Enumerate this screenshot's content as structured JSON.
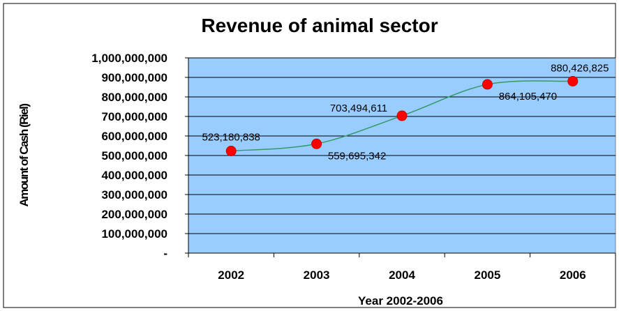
{
  "chart_data": {
    "type": "line",
    "title": "Revenue of animal sector",
    "xlabel": "Year 2002-2006",
    "ylabel": "Amount of Cash (Riel)",
    "categories": [
      "2002",
      "2003",
      "2004",
      "2005",
      "2006"
    ],
    "series": [
      {
        "values": [
          523180838,
          559695342,
          703494611,
          864105470,
          880426825
        ],
        "data_labels": [
          "523,180,838",
          "559,695,342",
          "703,494,611",
          "864,105,470",
          "880,426,825"
        ]
      }
    ],
    "y_ticks": [
      "-",
      "100,000,000",
      "200,000,000",
      "300,000,000",
      "400,000,000",
      "500,000,000",
      "600,000,000",
      "700,000,000",
      "800,000,000",
      "900,000,000",
      "1,000,000,000"
    ],
    "ylim": [
      0,
      1000000000
    ],
    "grid": true,
    "legend": "none",
    "colors": {
      "plot_background": "#99ccff",
      "line": "#339966",
      "marker": "#ff0000",
      "grid": "#000000"
    }
  }
}
